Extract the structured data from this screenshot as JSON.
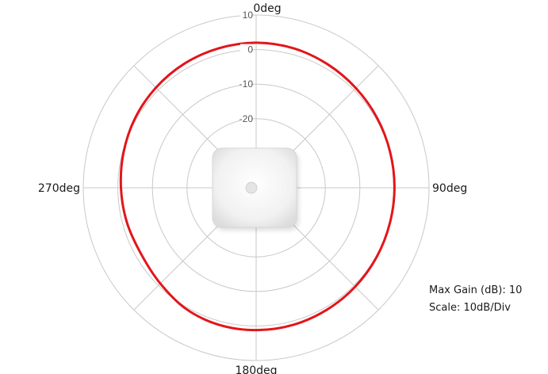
{
  "chart_data": {
    "type": "polar-line",
    "angle_labels": [
      {
        "deg": 0,
        "label": "0deg"
      },
      {
        "deg": 90,
        "label": "90deg"
      },
      {
        "deg": 180,
        "label": "180deg"
      },
      {
        "deg": 270,
        "label": "270deg"
      }
    ],
    "ring_labels": [
      "10",
      "0",
      "-10",
      "-20"
    ],
    "rings_db": [
      10,
      0,
      -10,
      -20,
      -30,
      -40
    ],
    "radial_range_db": [
      -40,
      10
    ],
    "spoke_angles_deg": [
      0,
      45,
      90,
      135,
      180,
      225,
      270,
      315
    ],
    "series": [
      {
        "color": "#e3151a",
        "points": [
          {
            "angle": 0,
            "gain": 2
          },
          {
            "angle": 15,
            "gain": 1.8
          },
          {
            "angle": 30,
            "gain": 1.3
          },
          {
            "angle": 45,
            "gain": 0.8
          },
          {
            "angle": 60,
            "gain": 0.4
          },
          {
            "angle": 75,
            "gain": 0.1
          },
          {
            "angle": 90,
            "gain": 0
          },
          {
            "angle": 105,
            "gain": 0
          },
          {
            "angle": 120,
            "gain": 0.2
          },
          {
            "angle": 135,
            "gain": 0.5
          },
          {
            "angle": 150,
            "gain": 0.8
          },
          {
            "angle": 165,
            "gain": 1.1
          },
          {
            "angle": 180,
            "gain": 1.2
          },
          {
            "angle": 195,
            "gain": 1.1
          },
          {
            "angle": 210,
            "gain": 0.5
          },
          {
            "angle": 225,
            "gain": -0.8
          },
          {
            "angle": 240,
            "gain": -1.6
          },
          {
            "angle": 255,
            "gain": -1.3
          },
          {
            "angle": 270,
            "gain": -0.9
          },
          {
            "angle": 285,
            "gain": -0.3
          },
          {
            "angle": 300,
            "gain": 0.4
          },
          {
            "angle": 315,
            "gain": 1
          },
          {
            "angle": 330,
            "gain": 1.5
          },
          {
            "angle": 345,
            "gain": 1.8
          }
        ]
      }
    ],
    "colors": {
      "grid": "#c8c8c8",
      "trace": "#e3151a",
      "device_face": "#f0f0f0",
      "device_edge": "#d6d6d6"
    }
  },
  "annotations": {
    "max_gain": "Max Gain (dB): 10",
    "scale": "Scale: 10dB/Div"
  }
}
